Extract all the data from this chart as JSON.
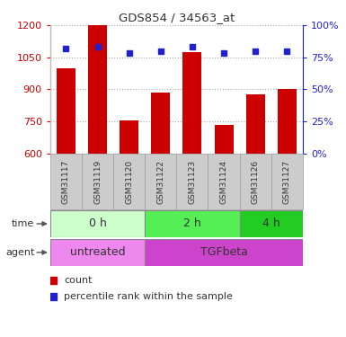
{
  "title": "GDS854 / 34563_at",
  "samples": [
    "GSM31117",
    "GSM31119",
    "GSM31120",
    "GSM31122",
    "GSM31123",
    "GSM31124",
    "GSM31126",
    "GSM31127"
  ],
  "counts": [
    1000,
    1200,
    755,
    885,
    1075,
    735,
    875,
    900
  ],
  "percentile_ranks": [
    82,
    83,
    78,
    80,
    83,
    78,
    80,
    80
  ],
  "ylim_left": [
    600,
    1200
  ],
  "yticks_left": [
    600,
    750,
    900,
    1050,
    1200
  ],
  "ylim_right": [
    0,
    100
  ],
  "yticks_right": [
    0,
    25,
    50,
    75,
    100
  ],
  "bar_color": "#cc0000",
  "dot_color": "#2222cc",
  "time_groups": [
    {
      "label": "0 h",
      "start": 0,
      "end": 3,
      "color": "#ccffcc"
    },
    {
      "label": "2 h",
      "start": 3,
      "end": 6,
      "color": "#55ee55"
    },
    {
      "label": "4 h",
      "start": 6,
      "end": 8,
      "color": "#22cc22"
    }
  ],
  "agent_groups": [
    {
      "label": "untreated",
      "start": 0,
      "end": 3,
      "color": "#ee88ee"
    },
    {
      "label": "TGFbeta",
      "start": 3,
      "end": 8,
      "color": "#cc44cc"
    }
  ],
  "left_axis_color": "#cc0000",
  "right_axis_color": "#2222cc",
  "grid_color": "#aaaaaa",
  "tick_bg_color": "#cccccc",
  "tick_border_color": "#999999",
  "bar_width": 0.6,
  "n_samples": 8
}
